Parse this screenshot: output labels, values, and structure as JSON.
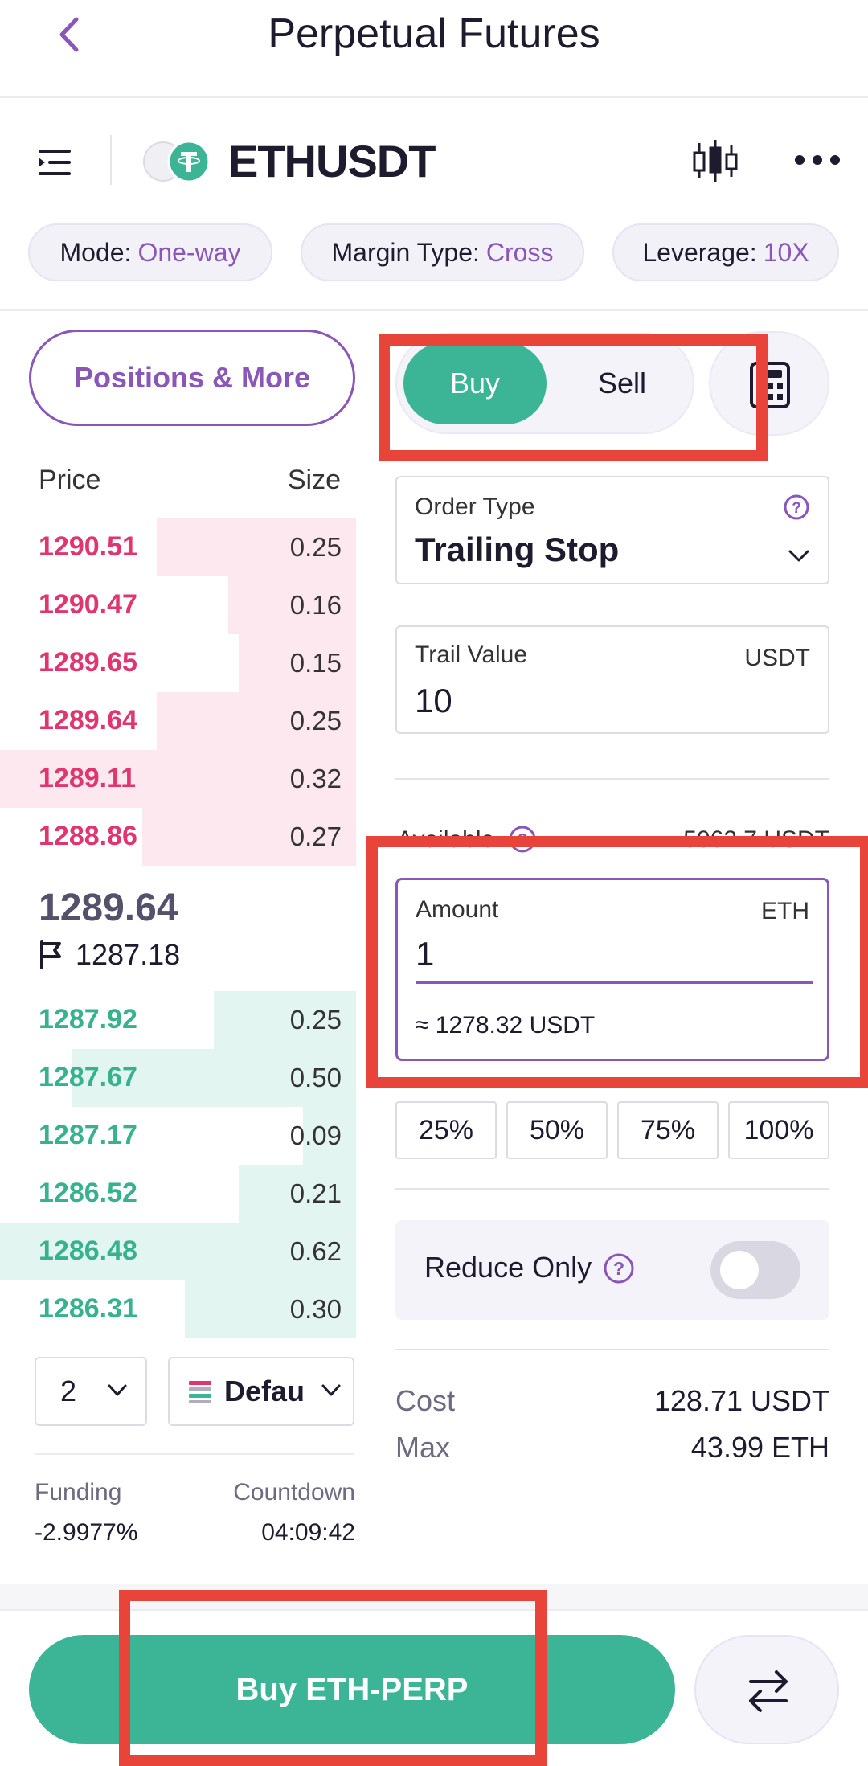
{
  "header": {
    "title": "Perpetual Futures"
  },
  "symbol_bar": {
    "symbol": "ETHUSDT"
  },
  "settings": {
    "mode_label": "Mode:",
    "mode_value": "One-way",
    "margin_label": "Margin Type:",
    "margin_value": "Cross",
    "leverage_label": "Leverage:",
    "leverage_value": "10X"
  },
  "left": {
    "positions_label": "Positions & More",
    "price_header": "Price",
    "size_header": "Size",
    "asks": [
      {
        "price": "1290.51",
        "size": "0.25",
        "depth": 0.56
      },
      {
        "price": "1290.47",
        "size": "0.16",
        "depth": 0.36
      },
      {
        "price": "1289.65",
        "size": "0.15",
        "depth": 0.33
      },
      {
        "price": "1289.64",
        "size": "0.25",
        "depth": 0.56
      },
      {
        "price": "1289.11",
        "size": "0.32",
        "depth": 1.0
      },
      {
        "price": "1288.86",
        "size": "0.27",
        "depth": 0.6
      }
    ],
    "last_price": "1289.64",
    "mark_price": "1287.18",
    "bids": [
      {
        "price": "1287.92",
        "size": "0.25",
        "depth": 0.4
      },
      {
        "price": "1287.67",
        "size": "0.50",
        "depth": 0.8
      },
      {
        "price": "1287.17",
        "size": "0.09",
        "depth": 0.15
      },
      {
        "price": "1286.52",
        "size": "0.21",
        "depth": 0.33
      },
      {
        "price": "1286.48",
        "size": "0.62",
        "depth": 1.0
      },
      {
        "price": "1286.31",
        "size": "0.30",
        "depth": 0.48
      }
    ],
    "depth_value": "2",
    "view_value": "Defau",
    "funding_label": "Funding",
    "funding_value": "-2.9977%",
    "countdown_label": "Countdown",
    "countdown_value": "04:09:42"
  },
  "order": {
    "buy_label": "Buy",
    "sell_label": "Sell",
    "order_type_label": "Order Type",
    "order_type_value": "Trailing Stop",
    "trail_label": "Trail Value",
    "trail_unit": "USDT",
    "trail_value": "10",
    "available_label": "Available",
    "available_value": "5062.7 USDT",
    "amount_label": "Amount",
    "amount_unit": "ETH",
    "amount_value": "1",
    "amount_approx": "≈ 1278.32 USDT",
    "pct_options": [
      "25%",
      "50%",
      "75%",
      "100%"
    ],
    "reduce_only_label": "Reduce Only",
    "reduce_only_on": false,
    "cost_label": "Cost",
    "cost_value": "128.71 USDT",
    "max_label": "Max",
    "max_value": "43.99 ETH"
  },
  "bottom": {
    "buy_button_label": "Buy ETH-PERP"
  },
  "colors": {
    "accent": "#8a56b8",
    "buy_green": "#3bb596",
    "ask_red": "#e0356e",
    "highlight_red": "#e8443a"
  }
}
